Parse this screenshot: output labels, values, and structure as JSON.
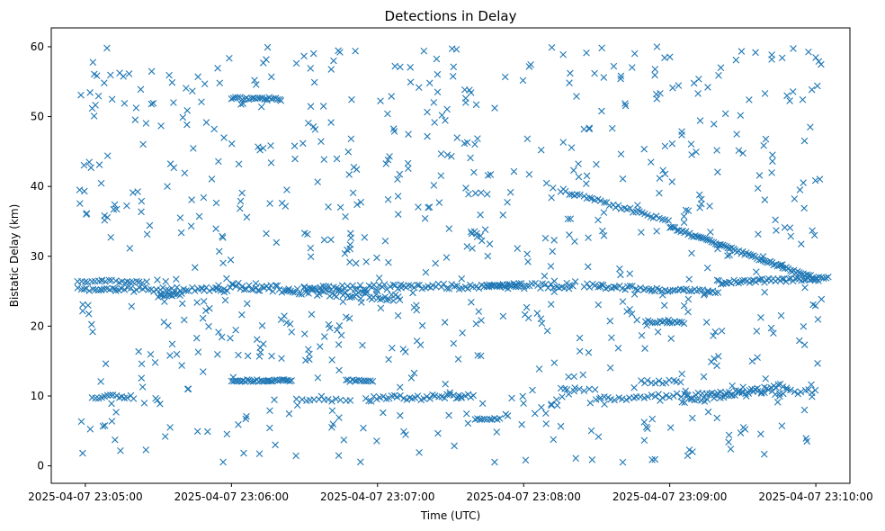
{
  "chart_data": {
    "type": "scatter",
    "title": "Detections in Delay",
    "xlabel": "Time (UTC)",
    "ylabel": "Bistatic Delay (km)",
    "x_unit": "seconds after 2025-04-07 23:05:00 UTC",
    "xlim": [
      -14,
      314
    ],
    "ylim": [
      -2.5,
      62.7
    ],
    "x_ticks": [
      0,
      60,
      120,
      180,
      240,
      300
    ],
    "x_tick_labels": [
      "2025-04-07 23:05:00",
      "2025-04-07 23:06:00",
      "2025-04-07 23:07:00",
      "2025-04-07 23:08:00",
      "2025-04-07 23:09:00",
      "2025-04-07 23:10:00"
    ],
    "y_ticks": [
      0,
      10,
      20,
      30,
      40,
      50,
      60
    ],
    "y_tick_labels": [
      "0",
      "10",
      "20",
      "30",
      "40",
      "50",
      "60"
    ],
    "grid": false,
    "marker": "x",
    "marker_color": "#1f77b4",
    "series": [
      {
        "tracks": [
          {
            "x": [
              -3,
              60
            ],
            "y": [
              25.2,
              25.3
            ],
            "step": 1.2,
            "jitter": 0.3
          },
          {
            "x": [
              60,
              130
            ],
            "y": [
              25.8,
              24.0
            ],
            "step": 0.9,
            "jitter": 0.5
          },
          {
            "x": [
              90,
              200
            ],
            "y": [
              25.5,
              25.8
            ],
            "step": 1.1,
            "jitter": 0.4
          },
          {
            "x": [
              205,
              260
            ],
            "y": [
              25.8,
              24.8
            ],
            "step": 1.1,
            "jitter": 0.3
          },
          {
            "x": [
              260,
              305
            ],
            "y": [
              26.3,
              26.8
            ],
            "step": 0.9,
            "jitter": 0.3
          },
          {
            "x": [
              195,
              240
            ],
            "y": [
              39.5,
              35.0
            ],
            "step": 1.2,
            "jitter": 0.3
          },
          {
            "x": [
              240,
              300
            ],
            "y": [
              34.2,
              26.8
            ],
            "step": 0.75,
            "jitter": 0.2
          },
          {
            "x": [
              3,
              20
            ],
            "y": [
              9.9,
              9.8
            ],
            "step": 1.2,
            "jitter": 0.3
          },
          {
            "x": [
              30,
              40
            ],
            "y": [
              24.3,
              24.6
            ],
            "step": 0.8,
            "jitter": 0.2
          },
          {
            "x": [
              60,
              85
            ],
            "y": [
              12.2,
              12.2
            ],
            "step": 0.8,
            "jitter": 0.15
          },
          {
            "x": [
              87,
              110
            ],
            "y": [
              9.4,
              9.4
            ],
            "step": 1.8,
            "jitter": 0.2
          },
          {
            "x": [
              107,
              118
            ],
            "y": [
              12.2,
              12.2
            ],
            "step": 0.9,
            "jitter": 0.15
          },
          {
            "x": [
              115,
              160
            ],
            "y": [
              9.6,
              10.0
            ],
            "step": 1.2,
            "jitter": 0.4
          },
          {
            "x": [
              160,
              170
            ],
            "y": [
              6.7,
              6.7
            ],
            "step": 1.0,
            "jitter": 0.1
          },
          {
            "x": [
              185,
              210
            ],
            "y": [
              7.5,
              11.5
            ],
            "step": 2.2,
            "jitter": 0.8
          },
          {
            "x": [
              210,
              300
            ],
            "y": [
              9.5,
              10.8
            ],
            "step": 1.5,
            "jitter": 0.4
          },
          {
            "x": [
              228,
              245
            ],
            "y": [
              12.0,
              12.0
            ],
            "step": 1.5,
            "jitter": 0.3
          },
          {
            "x": [
              245,
              288
            ],
            "y": [
              9.2,
              11.5
            ],
            "step": 1.3,
            "jitter": 0.4
          },
          {
            "x": [
              230,
              246
            ],
            "y": [
              20.7,
              20.5
            ],
            "step": 1.0,
            "jitter": 0.2
          },
          {
            "x": [
              60,
              80
            ],
            "y": [
              52.6,
              52.6
            ],
            "step": 0.9,
            "jitter": 0.15
          },
          {
            "x": [
              165,
              180
            ],
            "y": [
              25.8,
              25.8
            ],
            "step": 1.0,
            "jitter": 0.15
          },
          {
            "x": [
              -3,
              25
            ],
            "y": [
              26.4,
              26.4
            ],
            "step": 1.4,
            "jitter": 0.2
          }
        ],
        "noise": {
          "x": [
            -3,
            303
          ],
          "y": [
            0.5,
            60
          ],
          "count": 760,
          "seed": 4001
        }
      }
    ]
  }
}
